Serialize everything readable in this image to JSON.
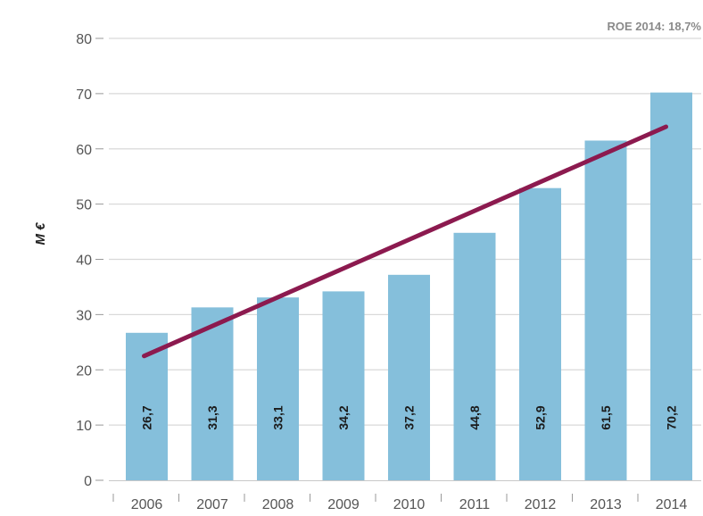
{
  "chart_data": {
    "type": "bar",
    "categories": [
      "2006",
      "2007",
      "2008",
      "2009",
      "2010",
      "2011",
      "2012",
      "2013",
      "2014"
    ],
    "values": [
      26.7,
      31.3,
      33.1,
      34.2,
      37.2,
      44.8,
      52.9,
      61.5,
      70.2
    ],
    "data_labels": [
      "26,7",
      "31,3",
      "33,1",
      "34,2",
      "37,2",
      "44,8",
      "52,9",
      "61,5",
      "70,2"
    ],
    "trend_line": {
      "start": [
        2006,
        22.5
      ],
      "end": [
        2014,
        64
      ]
    },
    "ylabel": "M €",
    "annotation": "ROE 2014: 18,7%",
    "ylim": [
      0,
      80
    ],
    "yticks": [
      "0",
      "10",
      "20",
      "30",
      "40",
      "50",
      "60",
      "70",
      "80"
    ],
    "grid": true,
    "colors": {
      "bar": "#85bfdb",
      "trend": "#8c1a4f",
      "grid": "#d9d9d9",
      "axis": "#999999"
    }
  }
}
